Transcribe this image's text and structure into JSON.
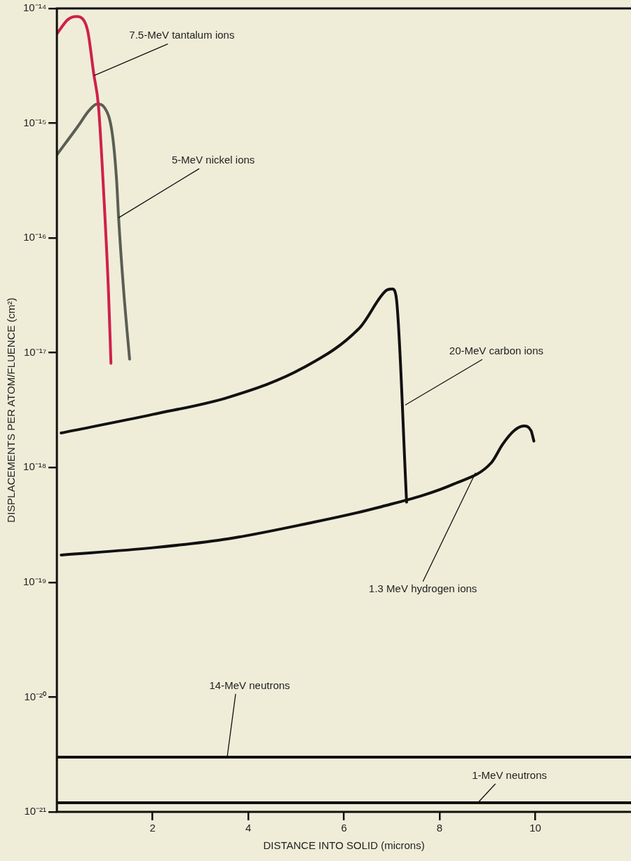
{
  "chart_data": {
    "type": "line",
    "xlabel": "DISTANCE INTO SOLID (microns)",
    "ylabel": "DISPLACEMENTS PER ATOM/FLUENCE (cm²)",
    "log": "y",
    "grid": false,
    "legend": false,
    "marker": "none",
    "line_style": "solid",
    "xlim": [
      0,
      12
    ],
    "xticks": [
      2,
      4,
      6,
      8,
      10
    ],
    "ylim": [
      1e-21,
      1e-14
    ],
    "yticks": [
      {
        "value": 1e-21,
        "label": "10⁻²¹"
      },
      {
        "value": 1e-20,
        "label": "10⁻²⁰"
      },
      {
        "value": 1e-19,
        "label": "10⁻¹⁹"
      },
      {
        "value": 1e-18,
        "label": "10⁻¹⁸"
      },
      {
        "value": 1e-17,
        "label": "10⁻¹⁷"
      },
      {
        "value": 1e-16,
        "label": "10⁻¹⁶"
      },
      {
        "value": 1e-15,
        "label": "10⁻¹⁵"
      },
      {
        "value": 1e-14,
        "label": "10⁻¹⁴"
      }
    ],
    "series": [
      {
        "color": "#d0204a",
        "x": [
          0,
          0.23,
          0.41,
          0.57,
          0.65,
          0.77,
          0.87,
          0.98,
          1.08,
          1.13
        ],
        "values": [
          6e-15,
          8e-15,
          8.5e-15,
          7.8e-15,
          6.2e-15,
          2.7e-15,
          1.4e-15,
          2.4e-16,
          3.3e-17,
          8.1e-18
        ]
      },
      {
        "color": "#5a5e55",
        "x": [
          0,
          0.44,
          0.68,
          0.84,
          1.0,
          1.16,
          1.25,
          1.29,
          1.4,
          1.52
        ],
        "values": [
          5.3e-16,
          9.4e-16,
          1.3e-15,
          1.47e-15,
          1.36e-15,
          8e-16,
          3.1e-16,
          1.5e-16,
          3.3e-17,
          8.8e-18
        ]
      },
      {
        "color": "#111111",
        "x": [
          0.09,
          2.0,
          3.59,
          5.15,
          6.34,
          6.89,
          7.01,
          7.09,
          7.31
        ],
        "values": [
          2e-18,
          2.9e-18,
          4.1e-18,
          7.4e-18,
          1.67e-17,
          3.5e-17,
          3.6e-17,
          3.1e-17,
          5e-19
        ]
      },
      {
        "color": "#111111",
        "x": [
          0.09,
          2.0,
          3.59,
          5.15,
          6.73,
          8.3,
          9.08,
          9.32,
          9.56,
          9.76,
          9.91,
          9.97
        ],
        "values": [
          1.73e-19,
          2e-19,
          2.4e-19,
          3.2e-19,
          4.5e-19,
          7.2e-19,
          1.1e-18,
          1.6e-18,
          2.1e-18,
          2.3e-18,
          2.1e-18,
          1.7e-18
        ]
      },
      {
        "color": "#111111",
        "x": [
          0,
          12
        ],
        "values": [
          3e-21,
          3e-21
        ]
      },
      {
        "color": "#111111",
        "x": [
          0,
          12
        ],
        "values": [
          1.2e-21,
          1.2e-21
        ]
      }
    ],
    "annotations": [
      {
        "text": "7.5-MeV tantalum ions",
        "x": 0.78,
        "y": 2.6e-15
      },
      {
        "text": "5-MeV nickel ions",
        "x": 1.29,
        "y": 1.5e-16
      },
      {
        "text": "20-MeV carbon ions",
        "x": 7.28,
        "y": 3.5e-18
      },
      {
        "text": "1.3 MeV hydrogen ions",
        "x": 8.75,
        "y": 9e-19
      },
      {
        "text": "14-MeV neutrons",
        "x": 3.56,
        "y": 3e-21
      },
      {
        "text": "1-MeV neutrons",
        "x": 8.8,
        "y": 1.2e-21
      }
    ]
  }
}
